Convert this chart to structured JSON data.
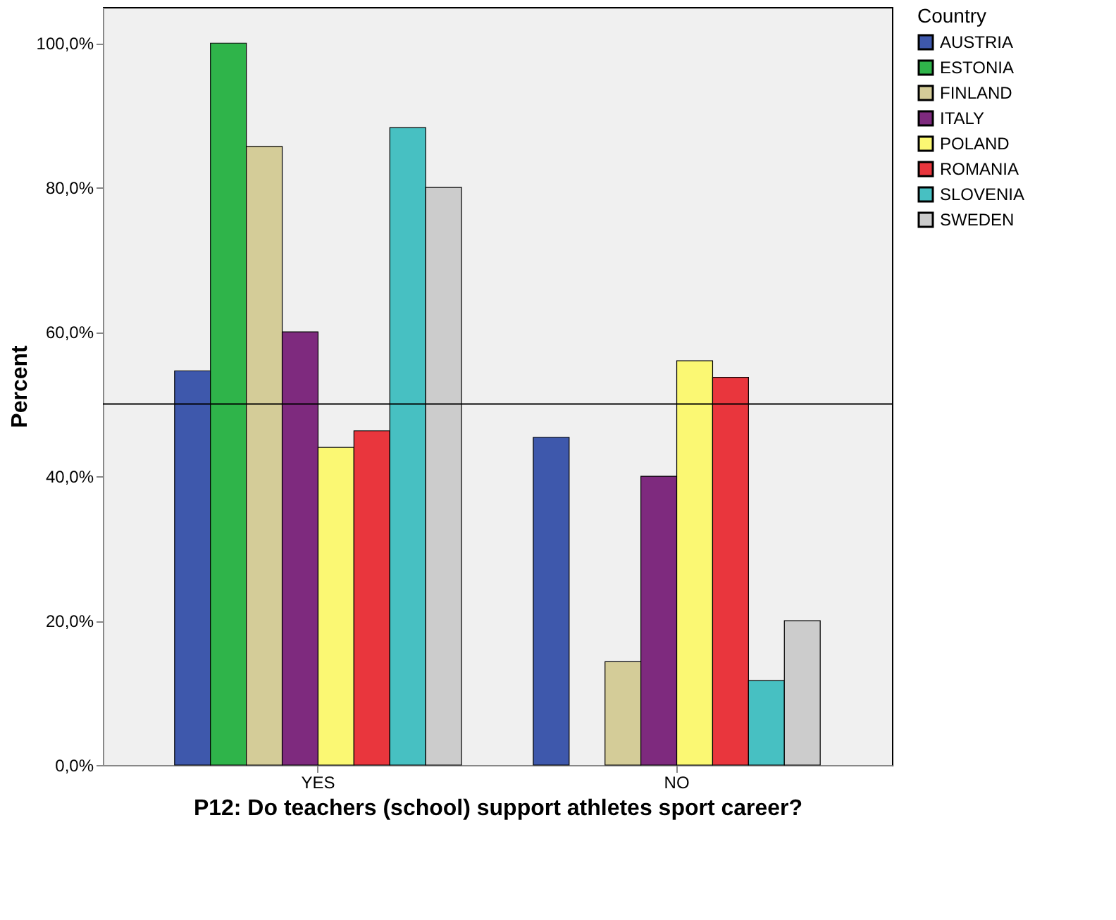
{
  "chart_data": {
    "type": "bar",
    "xlabel": "P12: Do teachers (school) support athletes sport career?",
    "ylabel": "Percent",
    "legend_title": "Country",
    "legend": "right",
    "grid": false,
    "categories": [
      "YES",
      "NO"
    ],
    "series": [
      {
        "name": "AUSTRIA",
        "color": "#3e58ac",
        "values": [
          54.6,
          45.4
        ]
      },
      {
        "name": "ESTONIA",
        "color": "#2fb44a",
        "values": [
          100,
          null
        ]
      },
      {
        "name": "FINLAND",
        "color": "#d4cc98",
        "values": [
          85.7,
          14.3
        ]
      },
      {
        "name": "ITALY",
        "color": "#7e2a7e",
        "values": [
          60,
          40
        ]
      },
      {
        "name": "POLAND",
        "color": "#fbf873",
        "values": [
          44,
          56
        ]
      },
      {
        "name": "ROMANIA",
        "color": "#e9363d",
        "values": [
          46.3,
          53.7
        ]
      },
      {
        "name": "SLOVENIA",
        "color": "#47c0c2",
        "values": [
          88.3,
          11.7
        ]
      },
      {
        "name": "SWEDEN",
        "color": "#cccccc",
        "values": [
          80,
          20
        ]
      }
    ],
    "ylim": [
      0,
      105
    ],
    "yticks": [
      {
        "value": 0,
        "label": "0,0%"
      },
      {
        "value": 20,
        "label": "20,0%"
      },
      {
        "value": 40,
        "label": "40,0%"
      },
      {
        "value": 60,
        "label": "60,0%"
      },
      {
        "value": 80,
        "label": "80,0%"
      },
      {
        "value": 100,
        "label": "100,0%"
      }
    ],
    "ref_lines": [
      {
        "axis": "y",
        "value": 50,
        "color": "#000000"
      }
    ]
  }
}
